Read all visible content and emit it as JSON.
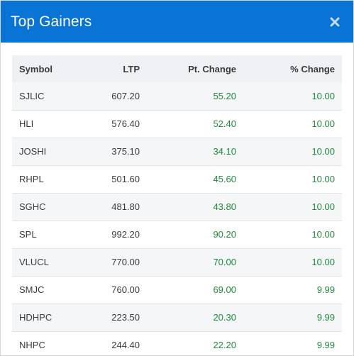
{
  "modal": {
    "title": "Top Gainers",
    "close_icon": "close-icon"
  },
  "table": {
    "headers": {
      "symbol": "Symbol",
      "ltp": "LTP",
      "pt_change": "Pt. Change",
      "pct_change": "% Change"
    },
    "rows": [
      {
        "symbol": "SJLIC",
        "ltp": "607.20",
        "pt_change": "55.20",
        "pct_change": "10.00"
      },
      {
        "symbol": "HLI",
        "ltp": "576.40",
        "pt_change": "52.40",
        "pct_change": "10.00"
      },
      {
        "symbol": "JOSHI",
        "ltp": "375.10",
        "pt_change": "34.10",
        "pct_change": "10.00"
      },
      {
        "symbol": "RHPL",
        "ltp": "501.60",
        "pt_change": "45.60",
        "pct_change": "10.00"
      },
      {
        "symbol": "SGHC",
        "ltp": "481.80",
        "pt_change": "43.80",
        "pct_change": "10.00"
      },
      {
        "symbol": "SPL",
        "ltp": "992.20",
        "pt_change": "90.20",
        "pct_change": "10.00"
      },
      {
        "symbol": "VLUCL",
        "ltp": "770.00",
        "pt_change": "70.00",
        "pct_change": "10.00"
      },
      {
        "symbol": "SMJC",
        "ltp": "760.00",
        "pt_change": "69.00",
        "pct_change": "9.99"
      },
      {
        "symbol": "HDHPC",
        "ltp": "223.50",
        "pt_change": "20.30",
        "pct_change": "9.99"
      },
      {
        "symbol": "NHPC",
        "ltp": "244.40",
        "pt_change": "22.20",
        "pct_change": "9.99"
      }
    ]
  },
  "colors": {
    "header_bg": "#0a74d6",
    "positive": "#1e8a3c",
    "table_head_bg": "#eef0f3"
  }
}
